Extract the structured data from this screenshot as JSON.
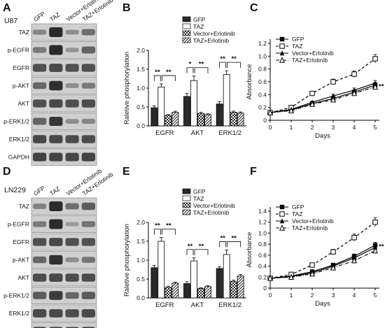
{
  "panels": {
    "A": {
      "letter": "A",
      "cell_line": "U87"
    },
    "B": {
      "letter": "B"
    },
    "C": {
      "letter": "C"
    },
    "D": {
      "letter": "D",
      "cell_line": "LN229"
    },
    "E": {
      "letter": "E"
    },
    "F": {
      "letter": "F"
    }
  },
  "blot_lanes": [
    "GFP",
    "TAZ",
    "Vector+Erlotinib",
    "TAZ+Erlotinib"
  ],
  "blot_rows": [
    "TAZ",
    "p-EGFR",
    "EGFR",
    "p-AKT",
    "AKT",
    "p-ERK1/2",
    "ERK1/2",
    "GAPDH"
  ],
  "significance": "**",
  "chart_data": [
    {
      "id": "B",
      "type": "bar",
      "ylabel": "Raletive phosphorylation",
      "categories": [
        "EGFR",
        "AKT",
        "ERK1/2"
      ],
      "ylim": [
        0,
        2.0
      ],
      "yticks": [
        0,
        0.5,
        1.0,
        1.5,
        2.0
      ],
      "series": [
        {
          "name": "GFP",
          "values": [
            0.48,
            0.78,
            0.58
          ],
          "errors": [
            0.05,
            0.08,
            0.06
          ]
        },
        {
          "name": "TAZ",
          "values": [
            1.03,
            1.2,
            1.36
          ],
          "errors": [
            0.08,
            0.12,
            0.1
          ]
        },
        {
          "name": "Vector+Erlotinib",
          "values": [
            0.28,
            0.33,
            0.36
          ],
          "errors": [
            0.02,
            0.03,
            0.03
          ]
        },
        {
          "name": "TAZ+Erlotinib",
          "values": [
            0.36,
            0.3,
            0.34
          ],
          "errors": [
            0.03,
            0.02,
            0.03
          ]
        }
      ],
      "annotations": [
        {
          "category": "EGFR",
          "labels": [
            "**",
            "**"
          ]
        },
        {
          "category": "AKT",
          "labels": [
            "*",
            "**"
          ]
        },
        {
          "category": "ERK1/2",
          "labels": [
            "**",
            "**"
          ]
        }
      ]
    },
    {
      "id": "C",
      "type": "line",
      "xlabel": "Days",
      "ylabel": "Absorbance",
      "x": [
        0,
        1,
        2,
        3,
        4,
        5
      ],
      "xlim": [
        0,
        5
      ],
      "ylim": [
        0,
        1.2
      ],
      "yticks": [
        0,
        0.2,
        0.4,
        0.6,
        0.8,
        1.0,
        1.2
      ],
      "series": [
        {
          "name": "GFP",
          "values": [
            0.12,
            0.16,
            0.26,
            0.34,
            0.44,
            0.55
          ]
        },
        {
          "name": "TAZ",
          "values": [
            0.12,
            0.2,
            0.42,
            0.6,
            0.72,
            0.96
          ]
        },
        {
          "name": "Vector+Erlotinib",
          "values": [
            0.12,
            0.17,
            0.28,
            0.38,
            0.47,
            0.58
          ]
        },
        {
          "name": "TAZ+Erlotinib",
          "values": [
            0.12,
            0.15,
            0.25,
            0.32,
            0.42,
            0.52
          ]
        }
      ],
      "annotation": "**"
    },
    {
      "id": "E",
      "type": "bar",
      "ylabel": "Raletive phosphorylation",
      "categories": [
        "EGFR",
        "AKT",
        "ERK1/2"
      ],
      "ylim": [
        0,
        2.0
      ],
      "yticks": [
        0,
        0.5,
        1.0,
        1.5,
        2.0
      ],
      "series": [
        {
          "name": "GFP",
          "values": [
            0.8,
            0.38,
            0.78
          ],
          "errors": [
            0.06,
            0.05,
            0.05
          ]
        },
        {
          "name": "TAZ",
          "values": [
            1.5,
            0.98,
            1.15
          ],
          "errors": [
            0.1,
            0.08,
            0.12
          ]
        },
        {
          "name": "Vector+Erlotinib",
          "values": [
            0.28,
            0.25,
            0.44
          ],
          "errors": [
            0.03,
            0.02,
            0.03
          ]
        },
        {
          "name": "TAZ+Erlotinib",
          "values": [
            0.39,
            0.3,
            0.58
          ],
          "errors": [
            0.03,
            0.03,
            0.04
          ]
        }
      ],
      "annotations": [
        {
          "category": "EGFR",
          "labels": [
            "**",
            "**"
          ]
        },
        {
          "category": "AKT",
          "labels": [
            "**",
            "**"
          ]
        },
        {
          "category": "ERK1/2",
          "labels": [
            "**",
            "**"
          ]
        }
      ]
    },
    {
      "id": "F",
      "type": "line",
      "xlabel": "Days",
      "ylabel": "Absorbance",
      "x": [
        0,
        1,
        2,
        3,
        4,
        5
      ],
      "xlim": [
        0,
        5
      ],
      "ylim": [
        0,
        1.4
      ],
      "yticks": [
        0,
        0.2,
        0.4,
        0.6,
        0.8,
        1.0,
        1.2,
        1.4
      ],
      "series": [
        {
          "name": "GFP",
          "values": [
            0.18,
            0.22,
            0.3,
            0.42,
            0.58,
            0.78
          ]
        },
        {
          "name": "TAZ",
          "values": [
            0.18,
            0.25,
            0.42,
            0.66,
            0.92,
            1.2
          ]
        },
        {
          "name": "Vector+Erlotinib",
          "values": [
            0.18,
            0.21,
            0.28,
            0.4,
            0.55,
            0.74
          ]
        },
        {
          "name": "TAZ+Erlotinib",
          "values": [
            0.18,
            0.2,
            0.26,
            0.37,
            0.5,
            0.68
          ]
        }
      ],
      "annotation": "**"
    }
  ]
}
